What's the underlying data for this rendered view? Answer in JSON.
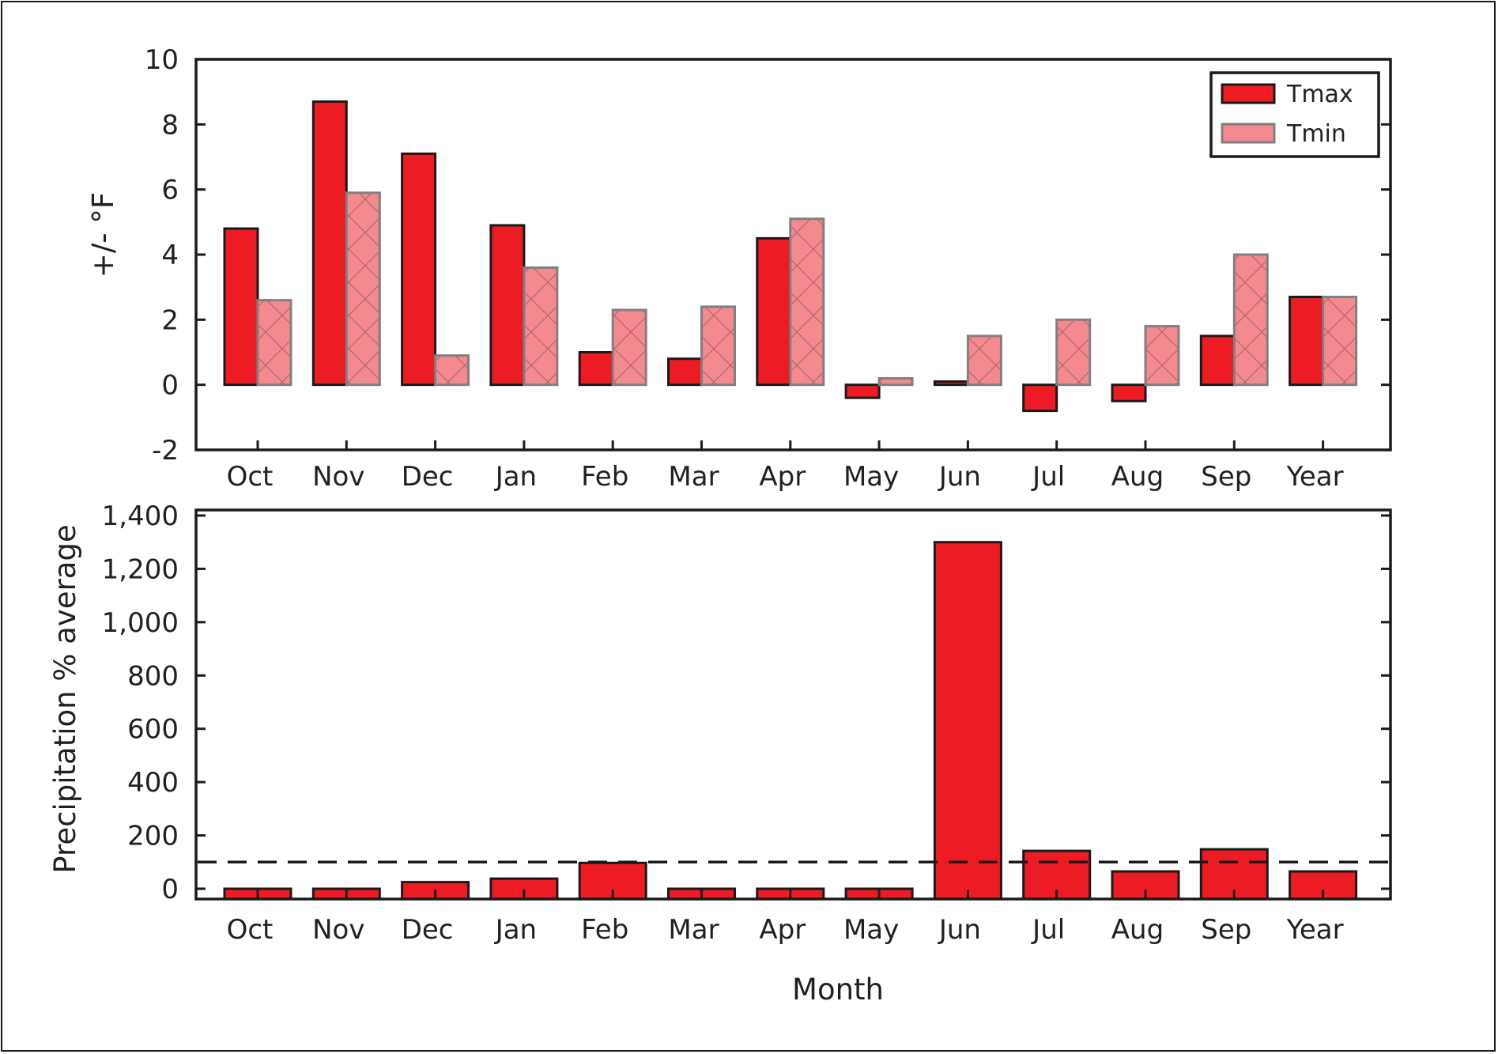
{
  "chart_data": [
    {
      "type": "bar",
      "ylabel": "+/- °F",
      "xlabel": "",
      "ylim": [
        -2,
        10
      ],
      "yticks": [
        "-2",
        "0",
        "2",
        "4",
        "6",
        "8",
        "10"
      ],
      "categories": [
        "Oct",
        "Nov",
        "Dec",
        "Jan",
        "Feb",
        "Mar",
        "Apr",
        "May",
        "Jun",
        "Jul",
        "Aug",
        "Sep",
        "Year"
      ],
      "legend": {
        "position": "top-right"
      },
      "series": [
        {
          "name": "Tmax",
          "color": "#ed1c24",
          "values": [
            4.8,
            8.7,
            7.1,
            4.9,
            1.0,
            0.8,
            4.5,
            -0.4,
            0.1,
            -0.8,
            -0.5,
            1.5,
            2.7
          ]
        },
        {
          "name": "Tmin",
          "color": "#f4898f",
          "pattern": "crosshatch",
          "values": [
            2.6,
            5.9,
            0.9,
            3.6,
            2.3,
            2.4,
            5.1,
            0.2,
            1.5,
            2.0,
            1.8,
            4.0,
            2.7
          ]
        }
      ]
    },
    {
      "type": "bar",
      "ylabel": "Precipitation % average",
      "xlabel": "Month",
      "ylim": [
        0,
        1400
      ],
      "yticks": [
        "0",
        "200",
        "400",
        "600",
        "800",
        "1,000",
        "1,200",
        "1,400"
      ],
      "categories": [
        "Oct",
        "Nov",
        "Dec",
        "Jan",
        "Feb",
        "Mar",
        "Apr",
        "May",
        "Jun",
        "Jul",
        "Aug",
        "Sep",
        "Year"
      ],
      "series": [
        {
          "color": "#ed1c24",
          "values": [
            0,
            0,
            25,
            38,
            97,
            0,
            0,
            0,
            1300,
            142,
            65,
            148,
            65
          ]
        }
      ],
      "reference_line": {
        "value": 100,
        "style": "dashed"
      }
    }
  ]
}
